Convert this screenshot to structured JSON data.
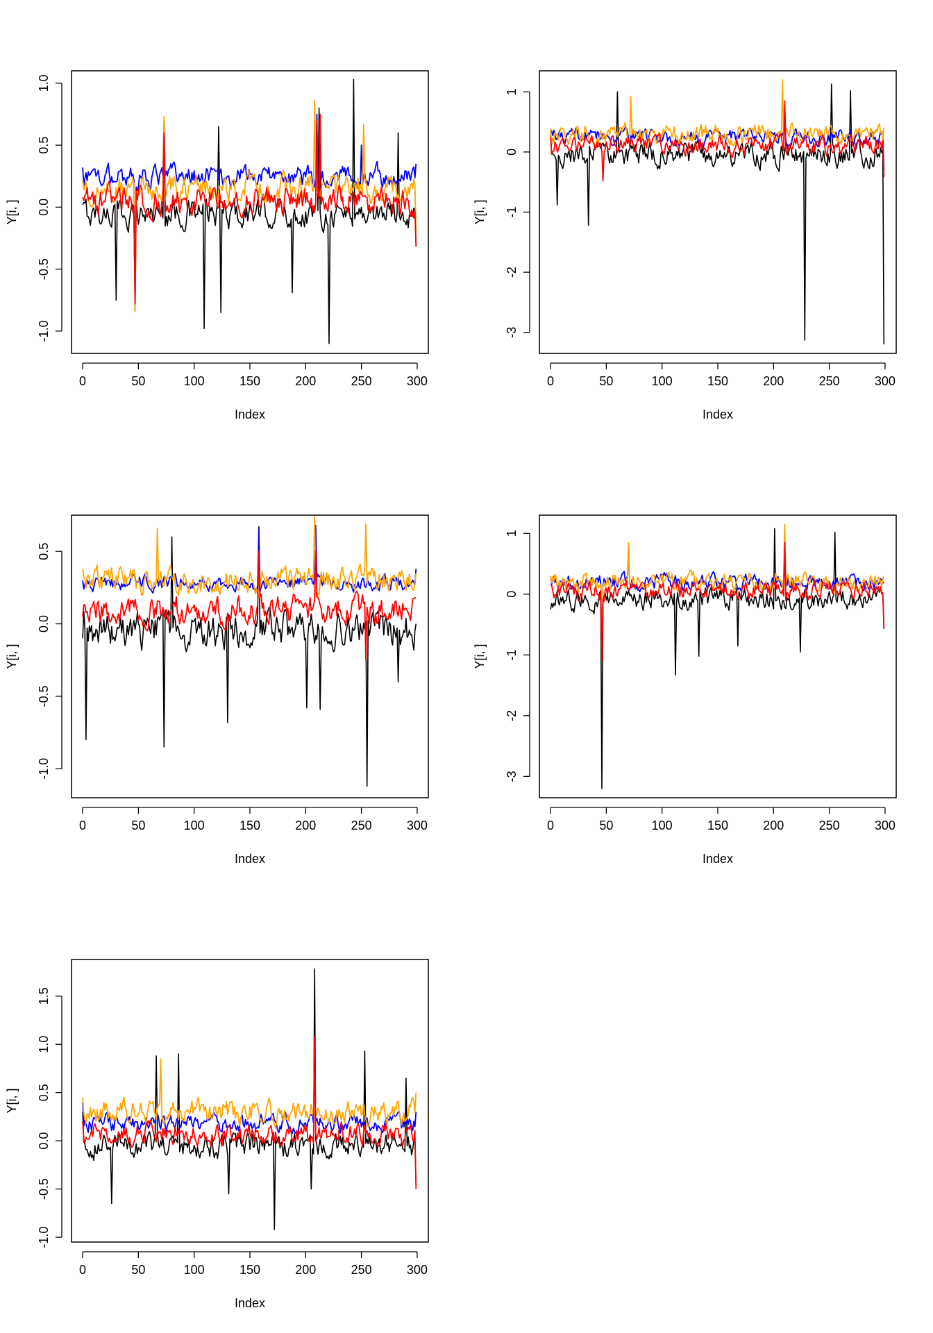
{
  "chart_data": [
    {
      "type": "line",
      "title": "",
      "xlabel": "Index",
      "ylabel": "Y[i, ]",
      "xlim": [
        -10,
        310
      ],
      "ylim": [
        -1.18,
        1.1
      ],
      "xticks": [
        0,
        50,
        100,
        150,
        200,
        250,
        300
      ],
      "xtick_labels": [
        "0",
        "50",
        "100",
        "150",
        "200",
        "250",
        "300"
      ],
      "yticks": [
        -1.0,
        -0.5,
        0.0,
        0.5,
        1.0
      ],
      "ytick_labels": [
        "-1.0",
        "-0.5",
        "0.0",
        "0.5",
        "1.0"
      ],
      "grid": false,
      "n_points": 300,
      "series": [
        {
          "name": "black",
          "color": "#000000",
          "baseline": -0.05,
          "noise": 0.09,
          "peaks": [
            [
              0,
              0.02
            ],
            [
              30,
              -0.75
            ],
            [
              47,
              -0.84
            ],
            [
              73,
              0.65
            ],
            [
              109,
              -0.98
            ],
            [
              122,
              0.65
            ],
            [
              124,
              -0.85
            ],
            [
              188,
              -0.69
            ],
            [
              210,
              0.72
            ],
            [
              212,
              0.8
            ],
            [
              221,
              -1.1
            ],
            [
              243,
              1.03
            ],
            [
              283,
              0.6
            ],
            [
              299,
              -0.3
            ]
          ]
        },
        {
          "name": "blue",
          "color": "#0000ff",
          "baseline": 0.25,
          "noise": 0.07,
          "peaks": [
            [
              0,
              0.32
            ],
            [
              47,
              -0.58
            ],
            [
              73,
              0.7
            ],
            [
              210,
              0.75
            ],
            [
              250,
              0.5
            ],
            [
              299,
              0.35
            ]
          ]
        },
        {
          "name": "orange",
          "color": "#ffa500",
          "baseline": 0.15,
          "noise": 0.09,
          "peaks": [
            [
              0,
              0.22
            ],
            [
              47,
              -0.84
            ],
            [
              73,
              0.73
            ],
            [
              208,
              0.86
            ],
            [
              252,
              0.67
            ],
            [
              299,
              -0.2
            ]
          ]
        },
        {
          "name": "red",
          "color": "#ff0000",
          "baseline": 0.05,
          "noise": 0.09,
          "peaks": [
            [
              0,
              0.08
            ],
            [
              47,
              -0.78
            ],
            [
              73,
              0.6
            ],
            [
              210,
              0.7
            ],
            [
              213,
              0.75
            ],
            [
              299,
              -0.32
            ]
          ]
        }
      ]
    },
    {
      "type": "line",
      "title": "",
      "xlabel": "Index",
      "ylabel": "Y[i, ]",
      "xlim": [
        -10,
        310
      ],
      "ylim": [
        -3.35,
        1.35
      ],
      "xticks": [
        0,
        50,
        100,
        150,
        200,
        250,
        300
      ],
      "xtick_labels": [
        "0",
        "50",
        "100",
        "150",
        "200",
        "250",
        "300"
      ],
      "yticks": [
        -3,
        -2,
        -1,
        0,
        1
      ],
      "ytick_labels": [
        "-3",
        "-2",
        "-1",
        "0",
        "1"
      ],
      "grid": false,
      "n_points": 300,
      "series": [
        {
          "name": "black",
          "color": "#000000",
          "baseline": -0.05,
          "noise": 0.15,
          "peaks": [
            [
              0,
              0.3
            ],
            [
              6,
              -0.88
            ],
            [
              34,
              -1.22
            ],
            [
              60,
              1.0
            ],
            [
              228,
              -3.13
            ],
            [
              252,
              1.13
            ],
            [
              269,
              1.02
            ],
            [
              299,
              -3.2
            ]
          ]
        },
        {
          "name": "blue",
          "color": "#0000ff",
          "baseline": 0.25,
          "noise": 0.1,
          "peaks": [
            [
              0,
              0.35
            ],
            [
              210,
              0.75
            ],
            [
              299,
              -0.3
            ]
          ]
        },
        {
          "name": "orange",
          "color": "#ffa500",
          "baseline": 0.3,
          "noise": 0.13,
          "peaks": [
            [
              0,
              0.38
            ],
            [
              72,
              0.92
            ],
            [
              208,
              1.2
            ],
            [
              299,
              0.4
            ]
          ]
        },
        {
          "name": "red",
          "color": "#ff0000",
          "baseline": 0.1,
          "noise": 0.12,
          "peaks": [
            [
              0,
              0.25
            ],
            [
              47,
              -0.48
            ],
            [
              210,
              0.85
            ],
            [
              299,
              -0.42
            ]
          ]
        }
      ]
    },
    {
      "type": "line",
      "title": "",
      "xlabel": "Index",
      "ylabel": "Y[i, ]",
      "xlim": [
        -10,
        310
      ],
      "ylim": [
        -1.2,
        0.75
      ],
      "xticks": [
        0,
        50,
        100,
        150,
        200,
        250,
        300
      ],
      "xtick_labels": [
        "0",
        "50",
        "100",
        "150",
        "200",
        "250",
        "300"
      ],
      "yticks": [
        -1.0,
        -0.5,
        0.0,
        0.5
      ],
      "ytick_labels": [
        "-1.0",
        "-0.5",
        "0.0",
        "0.5"
      ],
      "grid": false,
      "n_points": 300,
      "series": [
        {
          "name": "black",
          "color": "#000000",
          "baseline": -0.05,
          "noise": 0.1,
          "peaks": [
            [
              0,
              -0.1
            ],
            [
              3,
              -0.8
            ],
            [
              73,
              -0.85
            ],
            [
              80,
              0.6
            ],
            [
              130,
              -0.68
            ],
            [
              158,
              0.67
            ],
            [
              201,
              -0.58
            ],
            [
              213,
              -0.59
            ],
            [
              255,
              -1.12
            ],
            [
              283,
              -0.4
            ],
            [
              299,
              0.0
            ]
          ]
        },
        {
          "name": "blue",
          "color": "#0000ff",
          "baseline": 0.28,
          "noise": 0.04,
          "peaks": [
            [
              0,
              0.3
            ],
            [
              158,
              0.65
            ],
            [
              209,
              0.68
            ],
            [
              299,
              0.38
            ]
          ]
        },
        {
          "name": "orange",
          "color": "#ffa500",
          "baseline": 0.3,
          "noise": 0.07,
          "peaks": [
            [
              0,
              0.38
            ],
            [
              67,
              0.66
            ],
            [
              208,
              0.74
            ],
            [
              254,
              0.69
            ],
            [
              299,
              0.35
            ]
          ]
        },
        {
          "name": "red",
          "color": "#ff0000",
          "baseline": 0.1,
          "noise": 0.08,
          "peaks": [
            [
              0,
              0.05
            ],
            [
              158,
              0.5
            ],
            [
              209,
              0.5
            ],
            [
              254,
              -0.25
            ],
            [
              299,
              0.18
            ]
          ]
        }
      ]
    },
    {
      "type": "line",
      "title": "",
      "xlabel": "Index",
      "ylabel": "Y[i, ]",
      "xlim": [
        -10,
        310
      ],
      "ylim": [
        -3.35,
        1.3
      ],
      "xticks": [
        0,
        50,
        100,
        150,
        200,
        250,
        300
      ],
      "xtick_labels": [
        "0",
        "50",
        "100",
        "150",
        "200",
        "250",
        "300"
      ],
      "yticks": [
        -3,
        -2,
        -1,
        0,
        1
      ],
      "ytick_labels": [
        "-3",
        "-2",
        "-1",
        "0",
        "1"
      ],
      "grid": false,
      "n_points": 300,
      "series": [
        {
          "name": "black",
          "color": "#000000",
          "baseline": -0.08,
          "noise": 0.14,
          "peaks": [
            [
              0,
              -0.25
            ],
            [
              46,
              -3.2
            ],
            [
              112,
              -1.33
            ],
            [
              133,
              -1.02
            ],
            [
              168,
              -0.85
            ],
            [
              201,
              1.08
            ],
            [
              224,
              -0.95
            ],
            [
              255,
              1.02
            ],
            [
              299,
              -0.57
            ]
          ]
        },
        {
          "name": "blue",
          "color": "#0000ff",
          "baseline": 0.2,
          "noise": 0.1,
          "peaks": [
            [
              0,
              0.3
            ],
            [
              46,
              -1.05
            ],
            [
              70,
              0.8
            ],
            [
              210,
              0.95
            ],
            [
              299,
              0.2
            ]
          ]
        },
        {
          "name": "orange",
          "color": "#ffa500",
          "baseline": 0.2,
          "noise": 0.12,
          "peaks": [
            [
              0,
              0.3
            ],
            [
              46,
              -1.1
            ],
            [
              70,
              0.85
            ],
            [
              210,
              1.15
            ],
            [
              299,
              0.3
            ]
          ]
        },
        {
          "name": "red",
          "color": "#ff0000",
          "baseline": 0.05,
          "noise": 0.12,
          "peaks": [
            [
              0,
              0.15
            ],
            [
              46,
              -1.1
            ],
            [
              210,
              0.85
            ],
            [
              299,
              -0.55
            ]
          ]
        }
      ]
    },
    {
      "type": "line",
      "title": "",
      "xlabel": "Index",
      "ylabel": "Y[i, ]",
      "xlim": [
        -10,
        310
      ],
      "ylim": [
        -1.05,
        1.88
      ],
      "xticks": [
        0,
        50,
        100,
        150,
        200,
        250,
        300
      ],
      "xtick_labels": [
        "0",
        "50",
        "100",
        "150",
        "200",
        "250",
        "300"
      ],
      "yticks": [
        -1.0,
        -0.5,
        0.0,
        0.5,
        1.0,
        1.5
      ],
      "ytick_labels": [
        "-1.0",
        "-0.5",
        "0.0",
        "0.5",
        "1.0",
        "1.5"
      ],
      "grid": false,
      "n_points": 300,
      "series": [
        {
          "name": "black",
          "color": "#000000",
          "baseline": -0.05,
          "noise": 0.1,
          "peaks": [
            [
              0,
              0.3
            ],
            [
              26,
              -0.65
            ],
            [
              66,
              0.88
            ],
            [
              86,
              0.9
            ],
            [
              131,
              -0.55
            ],
            [
              172,
              -0.92
            ],
            [
              205,
              -0.5
            ],
            [
              208,
              1.78
            ],
            [
              253,
              0.93
            ],
            [
              290,
              0.65
            ],
            [
              299,
              -0.45
            ]
          ]
        },
        {
          "name": "blue",
          "color": "#0000ff",
          "baseline": 0.18,
          "noise": 0.07,
          "peaks": [
            [
              0,
              0.4
            ],
            [
              208,
              0.8
            ],
            [
              299,
              0.3
            ]
          ]
        },
        {
          "name": "orange",
          "color": "#ffa500",
          "baseline": 0.3,
          "noise": 0.1,
          "peaks": [
            [
              0,
              0.45
            ],
            [
              70,
              0.85
            ],
            [
              208,
              0.85
            ],
            [
              299,
              0.5
            ]
          ]
        },
        {
          "name": "red",
          "color": "#ff0000",
          "baseline": 0.08,
          "noise": 0.09,
          "peaks": [
            [
              0,
              0.2
            ],
            [
              208,
              1.08
            ],
            [
              299,
              -0.5
            ]
          ]
        }
      ]
    }
  ]
}
